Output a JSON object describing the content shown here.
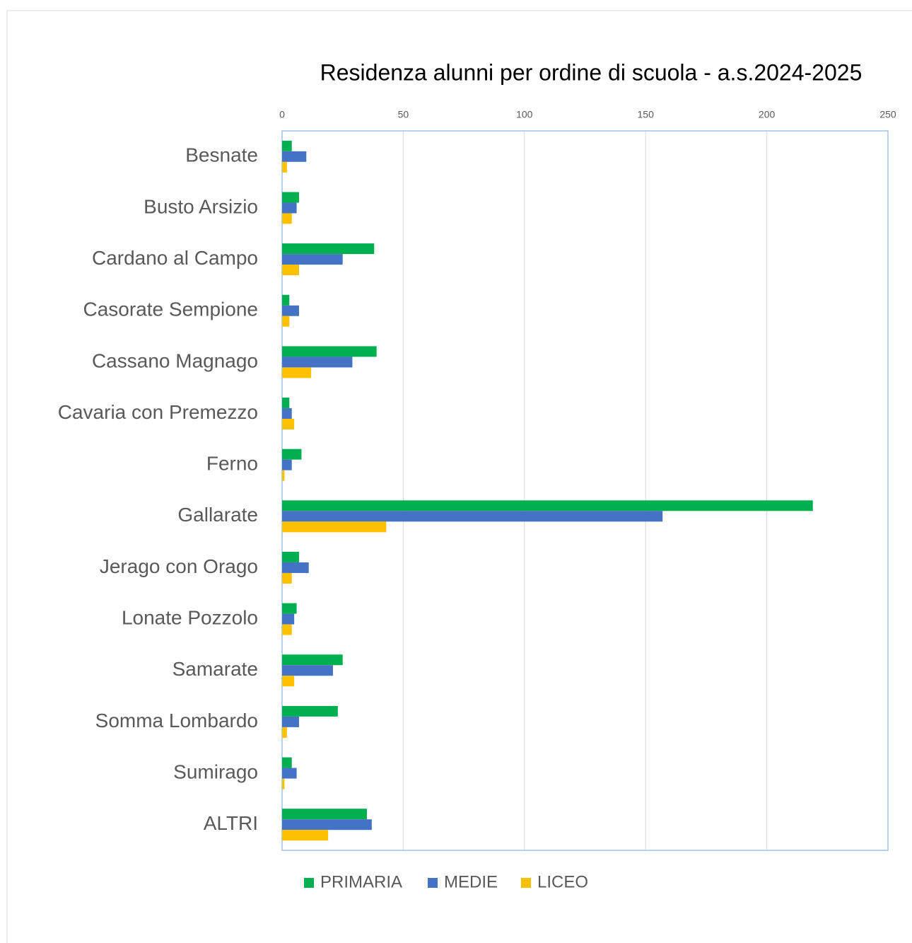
{
  "chart_data": {
    "type": "bar",
    "orientation": "horizontal",
    "title": "Residenza alunni per ordine di scuola - a.s.2024-2025",
    "categories": [
      "Besnate",
      "Busto Arsizio",
      "Cardano al Campo",
      "Casorate Sempione",
      "Cassano Magnago",
      "Cavaria con Premezzo",
      "Ferno",
      "Gallarate",
      "Jerago con Orago",
      "Lonate Pozzolo",
      "Samarate",
      "Somma Lombardo",
      "Sumirago",
      "ALTRI"
    ],
    "series": [
      {
        "name": "PRIMARIA",
        "color": "#00b050",
        "values": [
          4,
          7,
          38,
          3,
          39,
          3,
          8,
          219,
          7,
          6,
          25,
          23,
          4,
          35
        ]
      },
      {
        "name": "MEDIE",
        "color": "#4472c4",
        "values": [
          10,
          6,
          25,
          7,
          29,
          4,
          4,
          157,
          11,
          5,
          21,
          7,
          6,
          37
        ]
      },
      {
        "name": "LICEO",
        "color": "#ffc000",
        "values": [
          2,
          4,
          7,
          3,
          12,
          5,
          1,
          43,
          4,
          4,
          5,
          2,
          1,
          19
        ]
      }
    ],
    "xlim": [
      0,
      250
    ],
    "xticks": [
      0,
      50,
      100,
      150,
      200,
      250
    ],
    "grid": true,
    "legend": "bottom"
  }
}
